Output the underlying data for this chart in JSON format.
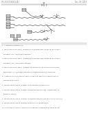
{
  "bg_color": "#ffffff",
  "header_left": "US 20130344614 A1",
  "header_right": "Dec. 26, 2013",
  "page_number": "17",
  "figure_label": "FIG. 7",
  "line_color": "#888888",
  "struct_color": "#555555",
  "text_color": "#444444",
  "footer_lines": [
    "1. A compound of formula (I):",
    "2. The compound of claim 1, wherein R1 is selected from the group consisting of",
    "   hydrogen, alkyl, and substituted alkyl.",
    "3. The compound of claim 1, wherein R2 is selected from the group consisting of",
    "   hydrogen, alkyl, and substituted alkyl.",
    "4. The compound of claim 1, wherein the compound is selected from the group",
    "   consisting of 1,1'-[[(substituted alkyl)imino]bis(alkylene)]bis-ferrocene.",
    "5. A method of electrochemical assay comprising labelling a substrate with a",
    "   compound of claim 1.",
    "6. The method of claim 5, wherein the substrate is a biomolecule.",
    "7. The method of claim 5, wherein the electrochemical assay is performed in a",
    "   biological sample.",
    "8. The method of claim 5, wherein the electrochemical assay detects the substrate.",
    "9. The method of claim 8, wherein the detection is quantitative.",
    "10. The method of claim 5, wherein the substrate is labeled at an amine group."
  ]
}
